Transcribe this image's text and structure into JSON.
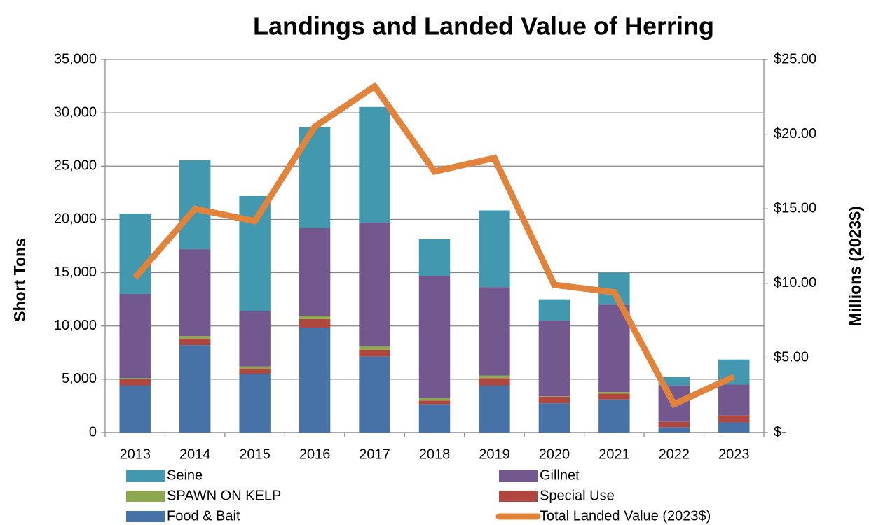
{
  "chart_data": {
    "type": "bar",
    "title": "Landings and Landed Value of Herring",
    "y_label": "Short Tons",
    "y2_label": "Millions (2023$)",
    "categories": [
      "2013",
      "2014",
      "2015",
      "2016",
      "2017",
      "2018",
      "2019",
      "2020",
      "2021",
      "2022",
      "2023"
    ],
    "stacked": true,
    "series": [
      {
        "name": "Food & Bait",
        "color": "#4672a8",
        "values": [
          4400,
          8200,
          5500,
          9850,
          7150,
          2650,
          4400,
          2750,
          3100,
          500,
          950
        ]
      },
      {
        "name": "Special Use",
        "color": "#b0473f",
        "values": [
          600,
          600,
          500,
          800,
          600,
          350,
          700,
          600,
          550,
          500,
          650
        ]
      },
      {
        "name": "SPAWN ON KELP",
        "color": "#8fa850",
        "values": [
          100,
          250,
          200,
          300,
          350,
          250,
          250,
          50,
          150,
          0,
          0
        ]
      },
      {
        "name": "Gillnet",
        "color": "#73588f",
        "values": [
          7900,
          8150,
          5200,
          8250,
          11600,
          11450,
          8300,
          7100,
          8200,
          3400,
          2900
        ]
      },
      {
        "name": "Seine",
        "color": "#4198af",
        "values": [
          7550,
          8350,
          10800,
          9450,
          10850,
          3450,
          7200,
          2000,
          3000,
          800,
          2350
        ]
      },
      {
        "name": "Total Landed Value (2023$)",
        "color": "#e1833a",
        "type": "line",
        "axis": "y2",
        "values": [
          10.37,
          15.0,
          14.17,
          20.5,
          23.2,
          17.5,
          18.4,
          9.9,
          9.4,
          1.9,
          3.75
        ]
      }
    ],
    "ylim": [
      0,
      35000
    ],
    "yticks": [
      0,
      {
        "value": 5000,
        "label": "5,000"
      },
      {
        "value": 10000,
        "label": "10,000"
      },
      {
        "value": 15000,
        "label": "15,000"
      },
      {
        "value": 20000,
        "label": "20,000"
      },
      {
        "value": 25000,
        "label": "25,000"
      },
      {
        "value": 30000,
        "label": "30,000"
      },
      {
        "value": 35000,
        "label": "35,000"
      }
    ],
    "y2lim": [
      0,
      25
    ],
    "y2ticks": [
      {
        "value": 0,
        "label": "$-"
      },
      {
        "value": 5,
        "label": "$5.00"
      },
      {
        "value": 10,
        "label": "$10.00"
      },
      {
        "value": 15,
        "label": "$15.00"
      },
      {
        "value": 20,
        "label": "$20.00"
      },
      {
        "value": 25,
        "label": "$25.00"
      }
    ],
    "grid": true,
    "legend": "bottom"
  }
}
